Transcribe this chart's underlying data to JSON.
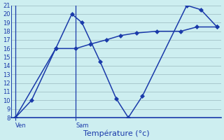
{
  "background_color": "#cdeef0",
  "grid_color": "#a8c8cc",
  "line_color": "#1a3aaa",
  "xlabel": "Température (°c)",
  "ylim": [
    8,
    21
  ],
  "yticks": [
    8,
    9,
    10,
    11,
    12,
    13,
    14,
    15,
    16,
    17,
    18,
    19,
    20,
    21
  ],
  "xtick_labels": [
    "Ven",
    "Sam"
  ],
  "xtick_positions": [
    0.0,
    3.0
  ],
  "xlim": [
    -0.2,
    10.2
  ],
  "series1_x": [
    0.0,
    0.8,
    2.0,
    2.8,
    3.3,
    4.2,
    5.0,
    5.6,
    6.3,
    8.5,
    9.2,
    10.0
  ],
  "series1_y": [
    8,
    10,
    16,
    20,
    19,
    14.5,
    10.2,
    8.0,
    10.5,
    21,
    20.5,
    18.5
  ],
  "series2_x": [
    0.0,
    2.0,
    3.0,
    3.7,
    4.5,
    5.2,
    6.0,
    7.0,
    8.2,
    9.0,
    10.0
  ],
  "series2_y": [
    8,
    16,
    16,
    16.5,
    17.0,
    17.5,
    17.8,
    18.0,
    18.0,
    18.5,
    18.5
  ],
  "vline_x": [
    0.0,
    3.0
  ],
  "marker": "D",
  "markersize": 3.0,
  "linewidth": 1.1,
  "tick_labelsize": 6,
  "xlabel_fontsize": 8
}
